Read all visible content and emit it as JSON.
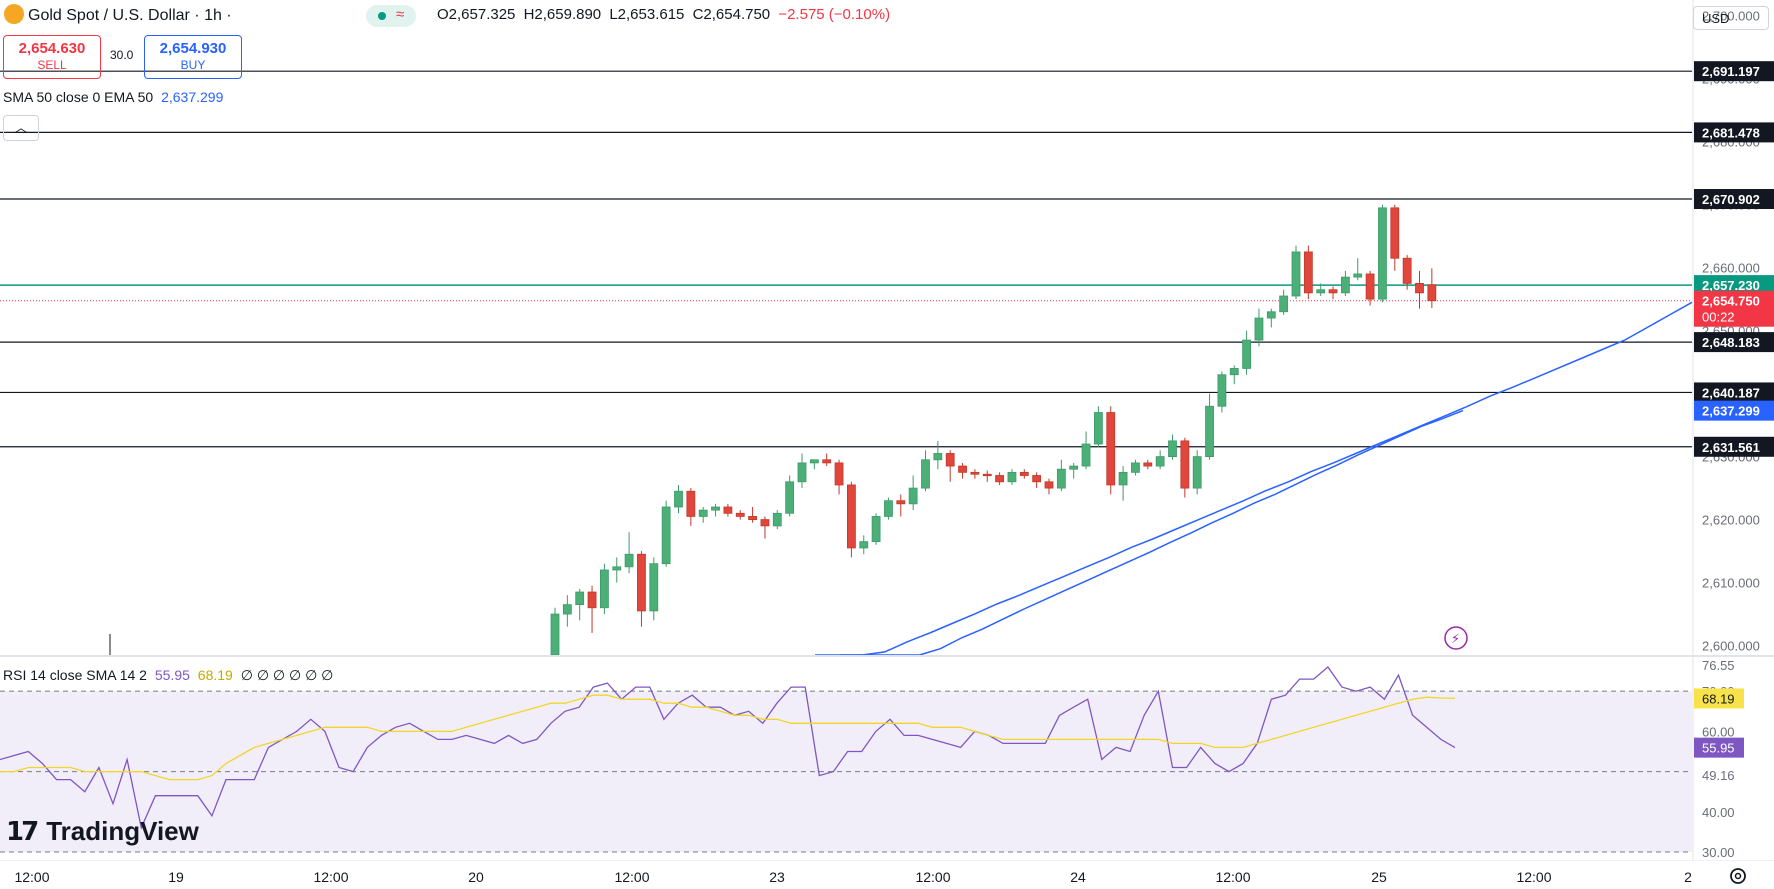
{
  "header": {
    "symbol_title": "Gold Spot / U.S. Dollar · 1h ·",
    "ohlc": {
      "open": "O2,657.325",
      "high": "H2,659.890",
      "low": "L2,653.615",
      "close": "C2,654.750",
      "change": "−2.575 (−0.10%)"
    },
    "sell_price": "2,654.630",
    "sell_label": "SELL",
    "spread": "30.0",
    "buy_price": "2,654.930",
    "buy_label": "BUY",
    "ema_indicator": "SMA 50 close 0 EMA 50",
    "ema_value": "2,637.299",
    "collapse_icon": "chevron-up-icon",
    "currency": "USD"
  },
  "rsi_legend": {
    "label": "RSI 14 close SMA 14 2",
    "rsi_value": "55.95",
    "sma_value": "68.19",
    "extras": "∅ ∅ ∅ ∅ ∅ ∅"
  },
  "branding": {
    "logo_text": "TradingView"
  },
  "colors": {
    "up": "#26a69a",
    "up_body": "#4caf77",
    "down": "#e0463c",
    "ema": "#2962ff",
    "rsi": "#7e57c2",
    "rsi_sma": "#f7e24a",
    "price_line": "#f23645",
    "level_line": "#131722",
    "open_line": "#089981"
  },
  "chart_data": [
    {
      "type": "candlestick",
      "title": "Gold Spot / U.S. Dollar · 1h",
      "ylim": [
        2598.5,
        2702.5
      ],
      "y_ticks": [
        "2,700.000",
        "2,690.000",
        "2,680.000",
        "2,670.000",
        "2,660.000",
        "2,650.000",
        "2,640.000",
        "2,630.000",
        "2,620.000",
        "2,610.000",
        "2,600.000"
      ],
      "x_ticks": [
        "12:00",
        "19",
        "12:00",
        "20",
        "12:00",
        "23",
        "12:00",
        "24",
        "12:00",
        "25",
        "12:00",
        "2"
      ],
      "horizontal_levels": [
        2691.197,
        2681.478,
        2670.902,
        2648.183,
        2640.187,
        2631.561
      ],
      "horizontal_level_labels": [
        "2,691.197",
        "2,681.478",
        "2,670.902",
        "2,648.183",
        "2,640.187",
        "2,631.561"
      ],
      "open_price_line": 2657.23,
      "open_price_label": "2,657.230",
      "last_price": 2654.75,
      "last_price_label": "2,654.750",
      "countdown": "00:22",
      "ema50_value": 2637.299,
      "ema50_label": "2,637.299",
      "candles": [
        {
          "o": 2596.0,
          "h": 2606.0,
          "l": 2590.0,
          "c": 2605.0
        },
        {
          "o": 2605.0,
          "h": 2608.0,
          "l": 2603.0,
          "c": 2606.5
        },
        {
          "o": 2606.5,
          "h": 2609.0,
          "l": 2604.0,
          "c": 2608.5
        },
        {
          "o": 2608.5,
          "h": 2609.5,
          "l": 2602.0,
          "c": 2606.0
        },
        {
          "o": 2606.0,
          "h": 2613.0,
          "l": 2605.0,
          "c": 2612.0
        },
        {
          "o": 2612.0,
          "h": 2614.0,
          "l": 2610.0,
          "c": 2612.5
        },
        {
          "o": 2612.5,
          "h": 2618.0,
          "l": 2611.5,
          "c": 2614.5
        },
        {
          "o": 2614.5,
          "h": 2615.0,
          "l": 2603.0,
          "c": 2605.5
        },
        {
          "o": 2605.5,
          "h": 2614.0,
          "l": 2604.0,
          "c": 2613.0
        },
        {
          "o": 2613.0,
          "h": 2623.0,
          "l": 2612.5,
          "c": 2622.0
        },
        {
          "o": 2622.0,
          "h": 2625.5,
          "l": 2621.0,
          "c": 2624.5
        },
        {
          "o": 2624.5,
          "h": 2625.0,
          "l": 2619.0,
          "c": 2620.5
        },
        {
          "o": 2620.5,
          "h": 2622.0,
          "l": 2619.5,
          "c": 2621.5
        },
        {
          "o": 2621.5,
          "h": 2622.5,
          "l": 2620.5,
          "c": 2622.0
        },
        {
          "o": 2622.0,
          "h": 2622.5,
          "l": 2620.5,
          "c": 2621.0
        },
        {
          "o": 2621.0,
          "h": 2621.5,
          "l": 2620.0,
          "c": 2620.5
        },
        {
          "o": 2620.5,
          "h": 2622.0,
          "l": 2619.5,
          "c": 2620.0
        },
        {
          "o": 2620.0,
          "h": 2620.5,
          "l": 2617.0,
          "c": 2619.0
        },
        {
          "o": 2619.0,
          "h": 2621.5,
          "l": 2618.5,
          "c": 2621.0
        },
        {
          "o": 2621.0,
          "h": 2627.0,
          "l": 2620.5,
          "c": 2626.0
        },
        {
          "o": 2626.0,
          "h": 2630.5,
          "l": 2625.0,
          "c": 2629.0
        },
        {
          "o": 2629.0,
          "h": 2629.5,
          "l": 2628.0,
          "c": 2629.5
        },
        {
          "o": 2629.5,
          "h": 2630.5,
          "l": 2628.5,
          "c": 2629.0
        },
        {
          "o": 2629.0,
          "h": 2629.5,
          "l": 2624.0,
          "c": 2625.5
        },
        {
          "o": 2625.5,
          "h": 2626.0,
          "l": 2614.0,
          "c": 2615.5
        },
        {
          "o": 2615.5,
          "h": 2617.5,
          "l": 2614.5,
          "c": 2616.5
        },
        {
          "o": 2616.5,
          "h": 2621.0,
          "l": 2616.0,
          "c": 2620.5
        },
        {
          "o": 2620.5,
          "h": 2623.5,
          "l": 2620.0,
          "c": 2623.0
        },
        {
          "o": 2623.0,
          "h": 2624.0,
          "l": 2620.5,
          "c": 2622.5
        },
        {
          "o": 2622.5,
          "h": 2627.0,
          "l": 2621.5,
          "c": 2625.0
        },
        {
          "o": 2625.0,
          "h": 2631.0,
          "l": 2624.5,
          "c": 2629.5
        },
        {
          "o": 2629.5,
          "h": 2632.5,
          "l": 2628.0,
          "c": 2630.5
        },
        {
          "o": 2630.5,
          "h": 2631.0,
          "l": 2626.0,
          "c": 2628.5
        },
        {
          "o": 2628.5,
          "h": 2629.0,
          "l": 2626.5,
          "c": 2627.5
        },
        {
          "o": 2627.5,
          "h": 2628.0,
          "l": 2626.5,
          "c": 2627.2
        },
        {
          "o": 2627.2,
          "h": 2627.8,
          "l": 2626.0,
          "c": 2627.0
        },
        {
          "o": 2627.0,
          "h": 2627.5,
          "l": 2625.5,
          "c": 2626.0
        },
        {
          "o": 2626.0,
          "h": 2628.0,
          "l": 2625.5,
          "c": 2627.5
        },
        {
          "o": 2627.5,
          "h": 2628.0,
          "l": 2626.5,
          "c": 2627.0
        },
        {
          "o": 2627.0,
          "h": 2627.5,
          "l": 2625.0,
          "c": 2626.0
        },
        {
          "o": 2626.0,
          "h": 2626.5,
          "l": 2624.0,
          "c": 2625.0
        },
        {
          "o": 2625.0,
          "h": 2629.5,
          "l": 2624.5,
          "c": 2628.0
        },
        {
          "o": 2628.0,
          "h": 2629.0,
          "l": 2626.5,
          "c": 2628.5
        },
        {
          "o": 2628.5,
          "h": 2634.0,
          "l": 2628.0,
          "c": 2632.0
        },
        {
          "o": 2632.0,
          "h": 2638.0,
          "l": 2631.5,
          "c": 2637.0
        },
        {
          "o": 2637.0,
          "h": 2638.0,
          "l": 2624.0,
          "c": 2625.5
        },
        {
          "o": 2625.5,
          "h": 2628.5,
          "l": 2623.0,
          "c": 2627.5
        },
        {
          "o": 2627.5,
          "h": 2629.5,
          "l": 2627.0,
          "c": 2629.0
        },
        {
          "o": 2629.0,
          "h": 2629.5,
          "l": 2628.0,
          "c": 2628.5
        },
        {
          "o": 2628.5,
          "h": 2631.0,
          "l": 2628.0,
          "c": 2630.0
        },
        {
          "o": 2630.0,
          "h": 2633.5,
          "l": 2629.5,
          "c": 2632.5
        },
        {
          "o": 2632.5,
          "h": 2633.0,
          "l": 2623.5,
          "c": 2625.0
        },
        {
          "o": 2625.0,
          "h": 2631.0,
          "l": 2624.0,
          "c": 2630.0
        },
        {
          "o": 2630.0,
          "h": 2640.0,
          "l": 2629.5,
          "c": 2638.0
        },
        {
          "o": 2638.0,
          "h": 2643.5,
          "l": 2637.0,
          "c": 2643.0
        },
        {
          "o": 2643.0,
          "h": 2644.5,
          "l": 2641.5,
          "c": 2644.0
        },
        {
          "o": 2644.0,
          "h": 2650.0,
          "l": 2643.0,
          "c": 2648.5
        },
        {
          "o": 2648.5,
          "h": 2653.5,
          "l": 2647.5,
          "c": 2652.0
        },
        {
          "o": 2652.0,
          "h": 2653.5,
          "l": 2650.5,
          "c": 2653.0
        },
        {
          "o": 2653.0,
          "h": 2656.5,
          "l": 2652.5,
          "c": 2655.5
        },
        {
          "o": 2655.5,
          "h": 2663.5,
          "l": 2655.0,
          "c": 2662.5
        },
        {
          "o": 2662.5,
          "h": 2663.5,
          "l": 2655.0,
          "c": 2656.0
        },
        {
          "o": 2656.0,
          "h": 2657.5,
          "l": 2655.5,
          "c": 2656.5
        },
        {
          "o": 2656.5,
          "h": 2657.0,
          "l": 2655.0,
          "c": 2656.0
        },
        {
          "o": 2656.0,
          "h": 2659.5,
          "l": 2655.5,
          "c": 2658.5
        },
        {
          "o": 2658.5,
          "h": 2661.5,
          "l": 2658.0,
          "c": 2659.0
        },
        {
          "o": 2659.0,
          "h": 2659.5,
          "l": 2654.0,
          "c": 2655.0
        },
        {
          "o": 2655.0,
          "h": 2670.0,
          "l": 2654.5,
          "c": 2669.5
        },
        {
          "o": 2669.5,
          "h": 2670.0,
          "l": 2659.5,
          "c": 2661.5
        },
        {
          "o": 2661.5,
          "h": 2662.0,
          "l": 2656.5,
          "c": 2657.5
        },
        {
          "o": 2657.5,
          "h": 2659.5,
          "l": 2653.5,
          "c": 2656.0
        },
        {
          "o": 2657.3,
          "h": 2659.9,
          "l": 2653.6,
          "c": 2654.75
        }
      ],
      "ema50": [
        2590.0,
        2591.5,
        2593.2,
        2594.6,
        2596.5,
        2598.0,
        2599.5,
        2601.2,
        2602.6,
        2604.2,
        2605.8,
        2607.3,
        2608.8,
        2610.3,
        2611.8,
        2613.3,
        2614.8,
        2616.4,
        2617.9,
        2619.5,
        2621.0,
        2622.6,
        2624.0,
        2625.6,
        2627.2,
        2628.7,
        2630.3,
        2631.8,
        2633.3,
        2634.8,
        2636.0,
        2637.299
      ],
      "sma50": [
        2596.0,
        2597.5,
        2599.0,
        2600.6,
        2602.0,
        2603.5,
        2605.0,
        2606.6,
        2608.0,
        2609.5,
        2611.0,
        2612.5,
        2614.0,
        2615.6,
        2617.0,
        2618.5,
        2620.0,
        2621.5,
        2623.0,
        2624.6,
        2626.0,
        2627.6,
        2629.0,
        2630.5,
        2632.0,
        2633.5,
        2635.0,
        2636.5,
        2638.0,
        2639.6,
        2641.0,
        2642.5,
        2644.0,
        2645.5,
        2647.0,
        2648.5,
        2650.5,
        2652.5,
        2654.5
      ]
    },
    {
      "type": "line",
      "title": "RSI 14 close SMA 14 2",
      "ylim": [
        28.0,
        78.5
      ],
      "y_ticks": [
        "76.55",
        "70.00",
        "60.00",
        "49.16",
        "40.00",
        "30.00"
      ],
      "bands": {
        "upper": 70,
        "middle": 50,
        "lower": 30
      },
      "series": [
        {
          "name": "RSI",
          "value_label": "55.95",
          "values": [
            53,
            54,
            55,
            52,
            48,
            48,
            45,
            51,
            42,
            53,
            36,
            44,
            44,
            44,
            44,
            39,
            48,
            48,
            48,
            56,
            58,
            60,
            63,
            60,
            51,
            50,
            56,
            59,
            61,
            62,
            60,
            58,
            58,
            59,
            58,
            57,
            59,
            57,
            58,
            62,
            65,
            66,
            71,
            72,
            68,
            71,
            71,
            63,
            67,
            69,
            66,
            66,
            64,
            65,
            62,
            67,
            71,
            71,
            49,
            50,
            55,
            55,
            60,
            63,
            59,
            59,
            58,
            57,
            56,
            60,
            59,
            57,
            57,
            57,
            57,
            64,
            66,
            68,
            53,
            56,
            55,
            64,
            70,
            51,
            51,
            56,
            52,
            50,
            52,
            57,
            68,
            69,
            73,
            73,
            76,
            71,
            70,
            71,
            68,
            74,
            64,
            61,
            58,
            55.95
          ]
        },
        {
          "name": "RSI SMA",
          "value_label": "68.19",
          "values": [
            50,
            50,
            51,
            51,
            51,
            51,
            50,
            50,
            50,
            50,
            50,
            49,
            48,
            48,
            48,
            49,
            52,
            54,
            56,
            57,
            58,
            59,
            60,
            61,
            61,
            61,
            61,
            60,
            60,
            60,
            60,
            60,
            60,
            61,
            62,
            63,
            64,
            65,
            66,
            67,
            67,
            68,
            69,
            69,
            68,
            68,
            68,
            67,
            67,
            66,
            66,
            65,
            64,
            64,
            63,
            63,
            62,
            62,
            62,
            62,
            62,
            62,
            62,
            62,
            62,
            62,
            61,
            61,
            61,
            60,
            59,
            58,
            58,
            58,
            58,
            58,
            58,
            58,
            58,
            58,
            58,
            58,
            58,
            57,
            57,
            57,
            56,
            56,
            56,
            57,
            58,
            59,
            60,
            61,
            62,
            63,
            64,
            65,
            66,
            67,
            68,
            68.5,
            68.3,
            68.19
          ]
        }
      ]
    }
  ],
  "time_axis": {
    "labels": [
      "12:00",
      "19",
      "12:00",
      "20",
      "12:00",
      "23",
      "12:00",
      "24",
      "12:00",
      "25",
      "12:00",
      "2"
    ]
  },
  "settings_icon": "gear-icon",
  "lightning_icon": "lightning-icon"
}
